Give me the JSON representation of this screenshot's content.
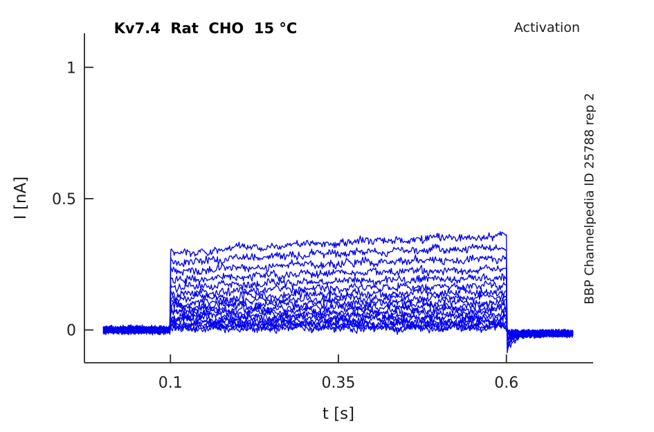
{
  "figure": {
    "background": "#ffffff"
  },
  "chart_data": {
    "type": "line",
    "title": "Kv7.4  Rat  CHO  15 °C",
    "annotation_top_right": "Activation",
    "annotation_right_side": "BBP Channelpedia ID 25788 rep 2",
    "xlabel": "t [s]",
    "ylabel": "I [nA]",
    "xlim": [
      -0.028,
      0.729
    ],
    "ylim": [
      -0.125,
      1.13
    ],
    "xticks": {
      "values": [
        0.1,
        0.35,
        0.6
      ],
      "labels": [
        "0.1",
        "0.35",
        "0.6"
      ]
    },
    "yticks": {
      "values": [
        0,
        0.5,
        1
      ],
      "labels": [
        "0",
        "0.5",
        "1"
      ]
    },
    "grid": false,
    "legend": null,
    "colors": {
      "trace": "#0000EE",
      "axis": "#262626",
      "tick_text": "#212121"
    },
    "series": {
      "kind": "voltage-clamp activation current family",
      "t_start_s": 0.0,
      "t_end_s": 0.7,
      "step_on_s": 0.1,
      "step_off_s": 0.6,
      "baseline_nA": 0.0,
      "steady_state_amplitudes_nA": [
        0.358,
        0.314,
        0.272,
        0.233,
        0.199,
        0.17,
        0.146,
        0.126,
        0.108,
        0.092,
        0.077,
        0.063,
        0.051,
        0.04,
        0.03,
        0.021,
        0.013,
        0.006
      ],
      "onset_fraction": 0.78,
      "rise_exponent": 0.55,
      "onset_overshoot_fraction": 0.06,
      "onset_overshoot_tau_s": 0.004,
      "undershoot_fraction": 0.22,
      "undershoot_tau_s": 0.012,
      "tail_offset_nA": -0.013,
      "noise_nA": 0.012,
      "wander_nA": 0.007
    }
  }
}
